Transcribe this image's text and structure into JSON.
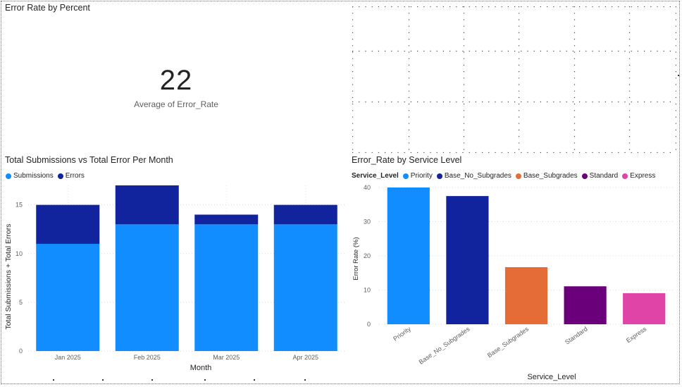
{
  "colors": {
    "submissions": "#118DFF",
    "errors": "#12239E",
    "priority": "#118DFF",
    "base_no_subgrades": "#12239E",
    "base_subgrades": "#E66C37",
    "standard": "#6B007B",
    "express": "#E044A7"
  },
  "kpi": {
    "title": "Error Rate by Percent",
    "value": "22",
    "label": "Average of Error_Rate"
  },
  "chart_data": [
    {
      "type": "bar",
      "stacked": true,
      "title": "Total Submissions vs Total Error Per Month",
      "xlabel": "Month",
      "ylabel": "Total Submissions + Total Errors",
      "categories": [
        "Jan 2025",
        "Feb 2025",
        "Mar 2025",
        "Apr 2025"
      ],
      "series": [
        {
          "name": "Submissions",
          "values": [
            11,
            13,
            13,
            13
          ],
          "color": "#118DFF"
        },
        {
          "name": "Errors",
          "values": [
            4,
            4,
            1,
            2
          ],
          "color": "#12239E"
        }
      ],
      "yticks": [
        "0",
        "5",
        "10",
        "15"
      ],
      "ylim": [
        0,
        17
      ],
      "grid": true,
      "legend": "top-left"
    },
    {
      "type": "bar",
      "title": "Error_Rate by Service Level",
      "xlabel": "Service_Level",
      "ylabel": "Error Rate (%)",
      "legend_title": "Service_Level",
      "categories": [
        "Priority",
        "Base_No_Subgrades",
        "Base_Subgrades",
        "Standard",
        "Express"
      ],
      "values": [
        40,
        37.5,
        16.7,
        11.1,
        9.1
      ],
      "colors": [
        "#118DFF",
        "#12239E",
        "#E66C37",
        "#6B007B",
        "#E044A7"
      ],
      "yticks": [
        "0",
        "10",
        "20",
        "30",
        "40"
      ],
      "ylim": [
        0,
        40
      ],
      "grid": true,
      "legend": "top-left"
    }
  ]
}
